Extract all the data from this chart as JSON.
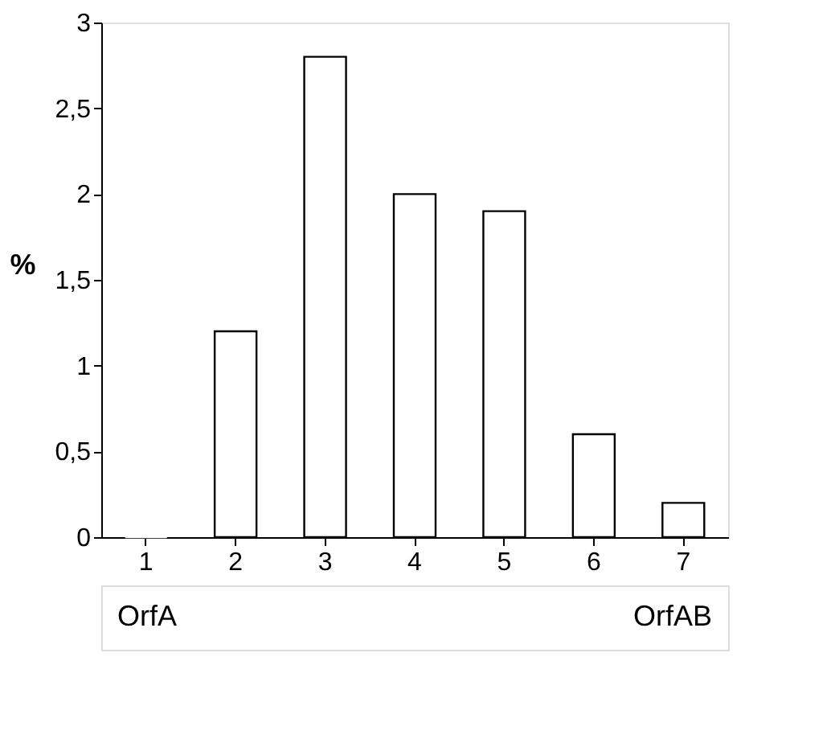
{
  "chart_data": {
    "type": "bar",
    "ylabel": "%",
    "categories": [
      "1",
      "2",
      "3",
      "4",
      "5",
      "6",
      "7"
    ],
    "values": [
      0,
      1.2,
      2.8,
      2.0,
      1.9,
      0.6,
      0.2
    ],
    "color": "#ffffff",
    "ylim": [
      0,
      3
    ],
    "yticks": [
      0,
      {
        "value": 0.5,
        "label": "0,5"
      },
      1,
      {
        "value": 1.5,
        "label": "1,5"
      },
      2,
      {
        "value": 2.5,
        "label": "2,5"
      },
      3
    ],
    "grid": false,
    "annotations": [
      "OrfA",
      "OrfAB"
    ]
  }
}
